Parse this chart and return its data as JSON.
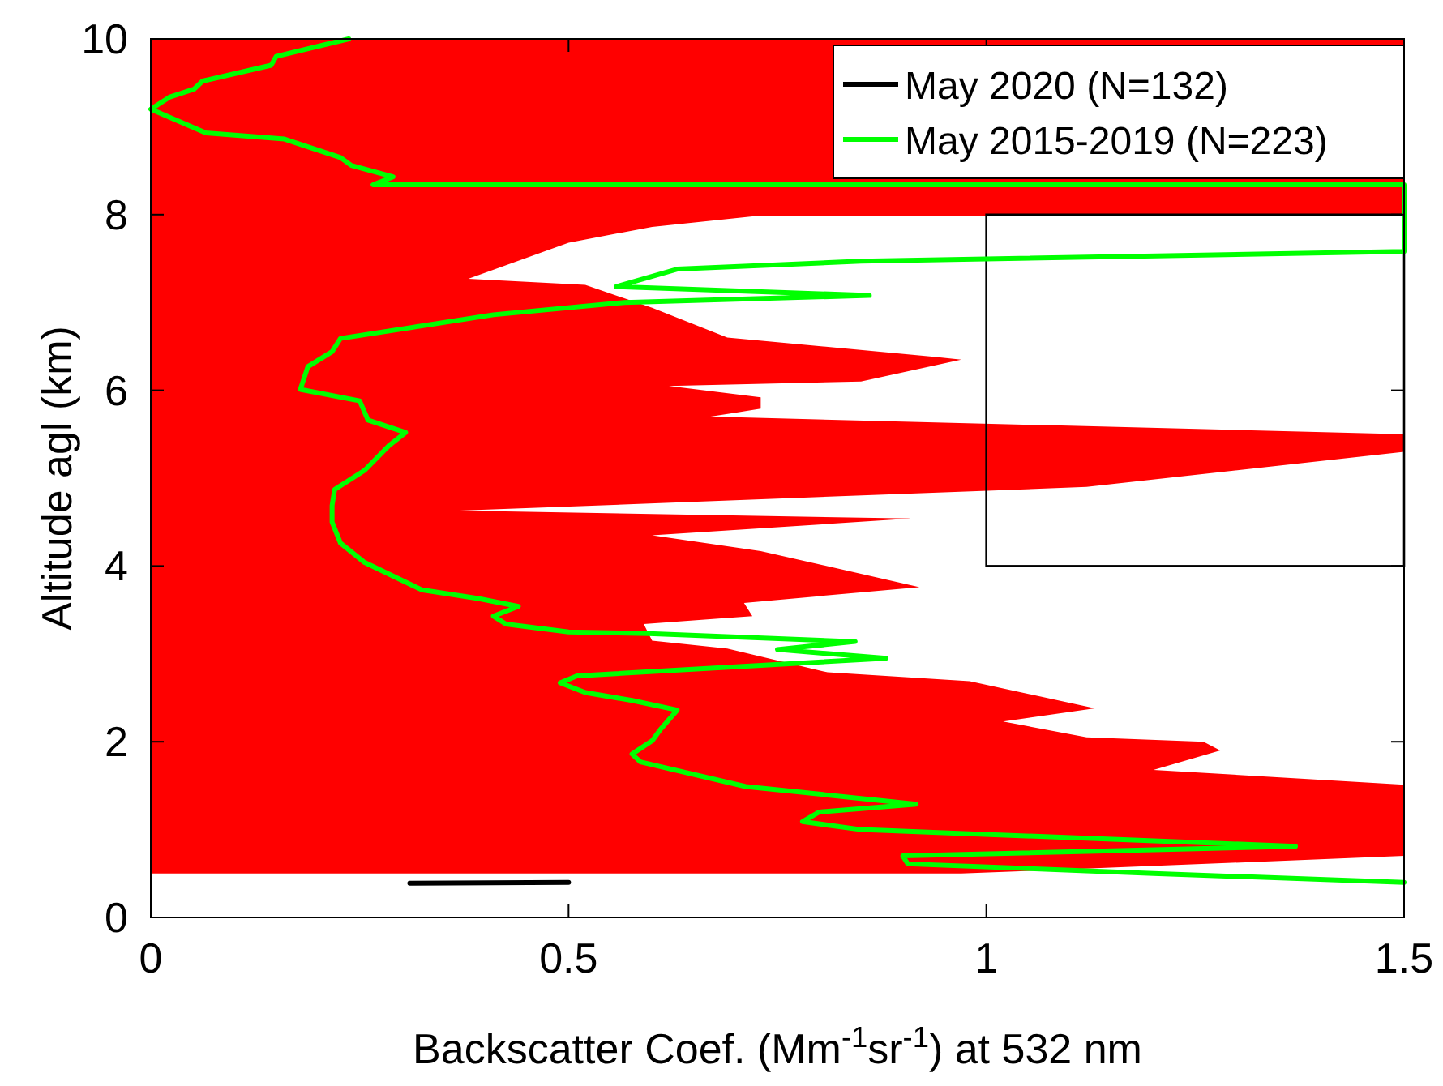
{
  "chart_data": {
    "type": "line",
    "xlabel": "Backscatter Coef. (Mm$^{-1}$sr$^{-1}$) at 532 nm",
    "ylabel": "Altitude agl (km)",
    "series": [
      {
        "type": "area",
        "color": "#ff0000",
        "x": [
          0,
          1.5,
          1.5,
          0.72,
          0.6,
          0.5,
          0.38,
          0.52,
          0.6,
          0.69,
          0.94,
          0.97,
          0.85,
          0.62,
          0.73,
          0.73,
          0.67,
          1.5,
          1.5,
          1.12,
          0.37,
          0.91,
          0.6,
          0.73,
          0.92,
          0.71,
          0.72,
          0.59,
          0.6,
          0.69,
          0.81,
          0.98,
          1.13,
          1.02,
          1.12,
          1.26,
          1.28,
          1.2,
          1.5,
          1.5,
          0.97,
          0
        ],
        "values": [
          10,
          10,
          8.0,
          7.98,
          7.86,
          7.68,
          7.27,
          7.2,
          6.94,
          6.6,
          6.38,
          6.35,
          6.1,
          6.05,
          5.92,
          5.79,
          5.7,
          5.5,
          5.3,
          4.9,
          4.63,
          4.54,
          4.35,
          4.17,
          3.76,
          3.58,
          3.43,
          3.34,
          3.15,
          3.06,
          2.79,
          2.69,
          2.38,
          2.23,
          2.05,
          2.0,
          1.9,
          1.68,
          1.51,
          0.7,
          0.5,
          0.5
        ]
      },
      {
        "name": "May 2020 (N=132)",
        "color": "#000000",
        "x": [
          0.31,
          0.5
        ],
        "values": [
          0.39,
          0.4
        ]
      },
      {
        "name": "May 2015-2019 (N=223)",
        "color": "#00ff00",
        "x": [
          0.237,
          0.15,
          0.144,
          0.062,
          0.052,
          0.023,
          0.0,
          0.066,
          0.16,
          0.227,
          0.24,
          0.29,
          0.266,
          1.5,
          1.5,
          0.85,
          0.63,
          0.557,
          0.86,
          0.567,
          0.41,
          0.227,
          0.217,
          0.188,
          0.179,
          0.25,
          0.26,
          0.305,
          0.285,
          0.256,
          0.22,
          0.217,
          0.217,
          0.227,
          0.256,
          0.324,
          0.392,
          0.44,
          0.41,
          0.425,
          0.5,
          0.596,
          0.843,
          0.75,
          0.88,
          0.51,
          0.49,
          0.52,
          0.576,
          0.63,
          0.61,
          0.6,
          0.576,
          0.586,
          0.712,
          0.916,
          0.8,
          0.78,
          0.85,
          1.37,
          0.9,
          0.906,
          1.2,
          1.5
        ],
        "values": [
          10,
          9.8,
          9.7,
          9.52,
          9.43,
          9.34,
          9.2,
          8.93,
          8.86,
          8.65,
          8.56,
          8.43,
          8.34,
          8.34,
          7.58,
          7.47,
          7.38,
          7.18,
          7.08,
          7.0,
          6.86,
          6.59,
          6.44,
          6.27,
          6.01,
          5.88,
          5.66,
          5.52,
          5.37,
          5.09,
          4.87,
          4.69,
          4.5,
          4.26,
          4.04,
          3.73,
          3.63,
          3.54,
          3.43,
          3.34,
          3.25,
          3.23,
          3.14,
          3.05,
          2.95,
          2.75,
          2.67,
          2.56,
          2.47,
          2.36,
          2.14,
          2.01,
          1.86,
          1.77,
          1.49,
          1.29,
          1.2,
          1.09,
          1.0,
          0.81,
          0.7,
          0.61,
          0.5,
          0.4
        ]
      }
    ],
    "xlim": [
      0,
      1.5
    ],
    "xticks": [
      0,
      0.5,
      1,
      1.5
    ],
    "ylim": [
      0,
      10
    ],
    "yticks": [
      0,
      2,
      4,
      6,
      8,
      10
    ],
    "legend": "top right"
  }
}
